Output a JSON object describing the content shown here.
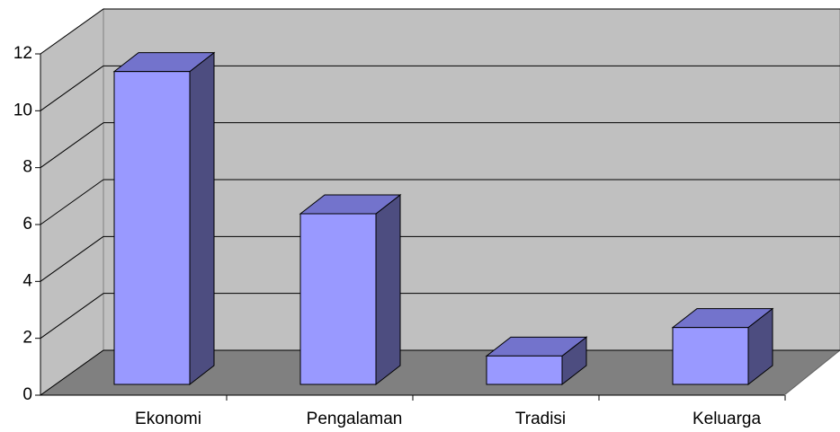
{
  "chart_data": {
    "type": "bar3d",
    "categories": [
      "Ekonomi",
      "Pengalaman",
      "Tradisi",
      "Keluarga"
    ],
    "values": [
      11,
      6,
      1,
      2
    ],
    "color": "#9999ff",
    "ylim": [
      0,
      12
    ],
    "yticks": [
      0,
      2,
      4,
      6,
      8,
      10,
      12
    ],
    "grid": true
  }
}
